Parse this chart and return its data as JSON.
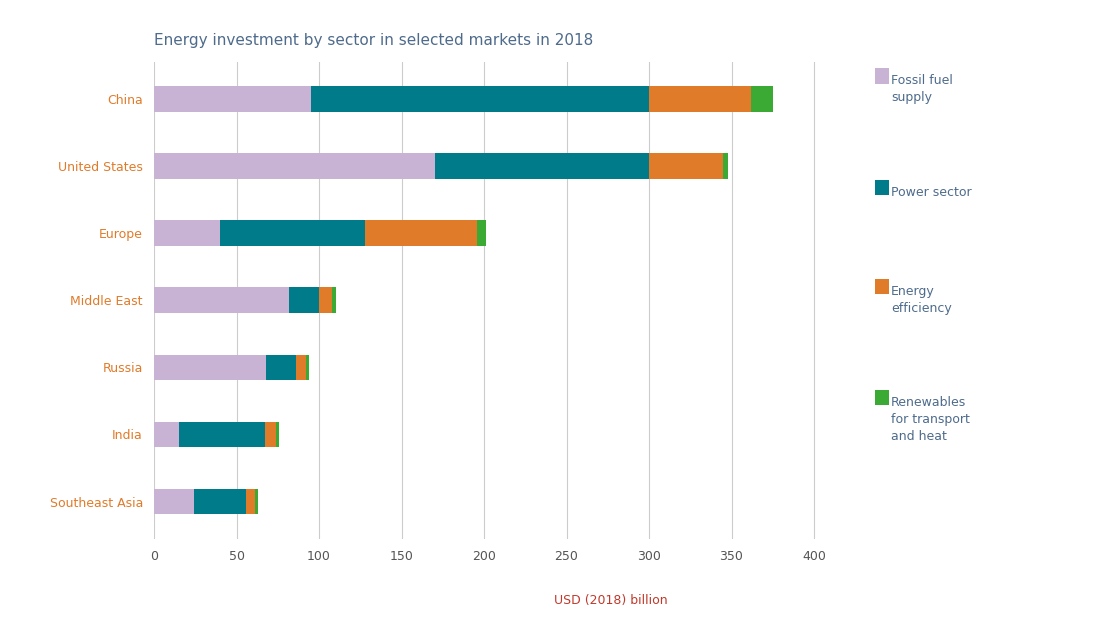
{
  "title": "Energy investment by sector in selected markets in 2018",
  "categories": [
    "China",
    "United States",
    "Europe",
    "Middle East",
    "Russia",
    "India",
    "Southeast Asia"
  ],
  "segments": {
    "Fossil fuel supply": [
      95,
      170,
      40,
      82,
      68,
      15,
      24
    ],
    "Power sector": [
      205,
      130,
      88,
      18,
      18,
      52,
      32
    ],
    "Energy efficiency": [
      62,
      45,
      68,
      8,
      6,
      7,
      5
    ],
    "Renewables for transport and heat": [
      13,
      3,
      5,
      2,
      2,
      2,
      2
    ]
  },
  "colors": {
    "Fossil fuel supply": "#c9b3d5",
    "Power sector": "#007b8a",
    "Energy efficiency": "#e07b2a",
    "Renewables for transport and heat": "#3aaa35"
  },
  "xlabel": "USD (2018) billion",
  "xlim": [
    0,
    420
  ],
  "xticks": [
    0,
    50,
    100,
    150,
    200,
    250,
    300,
    350,
    400
  ],
  "background_color": "#ffffff",
  "title_color": "#4e6b8c",
  "yticklabel_color": "#e07b2a",
  "xticklabel_color": "#555555",
  "grid_color": "#cccccc",
  "xlabel_color": "#c0392b",
  "legend_text_color": "#4e6b8c",
  "bar_height": 0.38,
  "title_fontsize": 11,
  "tick_fontsize": 9,
  "legend_fontsize": 9
}
